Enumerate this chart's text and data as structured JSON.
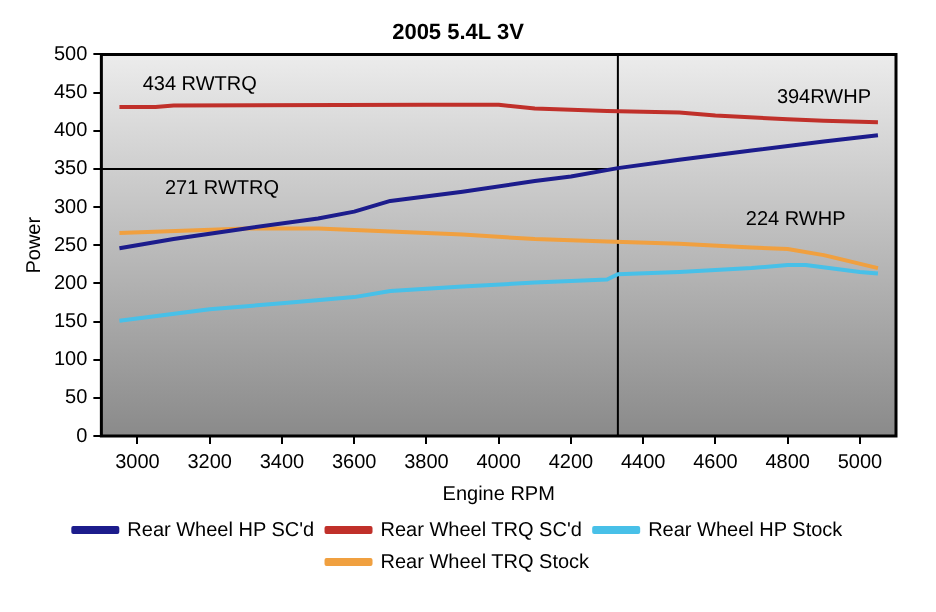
{
  "chart_data": {
    "type": "line",
    "title": "2005 5.4L 3V",
    "xlabel": "Engine RPM",
    "ylabel": "Power",
    "xlim": [
      2900,
      5100
    ],
    "xticks": [
      3000,
      3200,
      3400,
      3600,
      3800,
      4000,
      4200,
      4400,
      4600,
      4800,
      5000
    ],
    "ylim": [
      0,
      500
    ],
    "yticks": [
      0,
      50,
      100,
      150,
      200,
      250,
      300,
      350,
      400,
      450,
      500
    ],
    "legend": "bottom",
    "marker": "none",
    "line_style": "solid",
    "series": [
      {
        "name": "Rear Wheel HP SC'd",
        "color": "#1c1c8c",
        "x": [
          2950,
          3100,
          3300,
          3500,
          3600,
          3700,
          3900,
          4100,
          4200,
          4330,
          4500,
          4700,
          4900,
          5050
        ],
        "values": [
          246,
          258,
          272,
          285,
          294,
          308,
          320,
          334,
          340,
          351,
          362,
          374,
          386,
          394
        ]
      },
      {
        "name": "Rear Wheel TRQ SC'd",
        "color": "#c0302a",
        "x": [
          2950,
          3050,
          3100,
          3800,
          4000,
          4100,
          4300,
          4500,
          4600,
          4800,
          4900,
          5050
        ],
        "values": [
          431,
          431,
          433,
          434,
          434,
          429,
          426,
          424,
          420,
          415,
          413,
          411
        ]
      },
      {
        "name": "Rear Wheel HP Stock",
        "color": "#48c0e8",
        "x": [
          2950,
          3200,
          3400,
          3600,
          3700,
          3900,
          4100,
          4300,
          4330,
          4500,
          4700,
          4800,
          4850,
          5000,
          5050
        ],
        "values": [
          151,
          166,
          174,
          182,
          190,
          196,
          201,
          205,
          212,
          215,
          220,
          224,
          224,
          215,
          213
        ]
      },
      {
        "name": "Rear Wheel TRQ Stock",
        "color": "#f0a040",
        "x": [
          2950,
          3300,
          3500,
          3700,
          3900,
          4100,
          4300,
          4500,
          4700,
          4800,
          4900,
          5050
        ],
        "values": [
          266,
          272,
          272,
          268,
          264,
          258,
          255,
          252,
          247,
          245,
          237,
          220
        ]
      }
    ],
    "ref_lines": [
      {
        "axis": "x",
        "value": 4330,
        "color": "#000000"
      },
      {
        "axis": "y",
        "value": 350,
        "color": "#000000"
      }
    ],
    "annotations": [
      {
        "text": "434 RWTRQ",
        "x": 3200,
        "y": 434
      },
      {
        "text": "394RWHP",
        "x": 5050,
        "y": 394
      },
      {
        "text": "271 RWTRQ",
        "x": 3400,
        "y": 272
      },
      {
        "text": "224 RWHP",
        "x": 4850,
        "y": 224
      }
    ]
  }
}
